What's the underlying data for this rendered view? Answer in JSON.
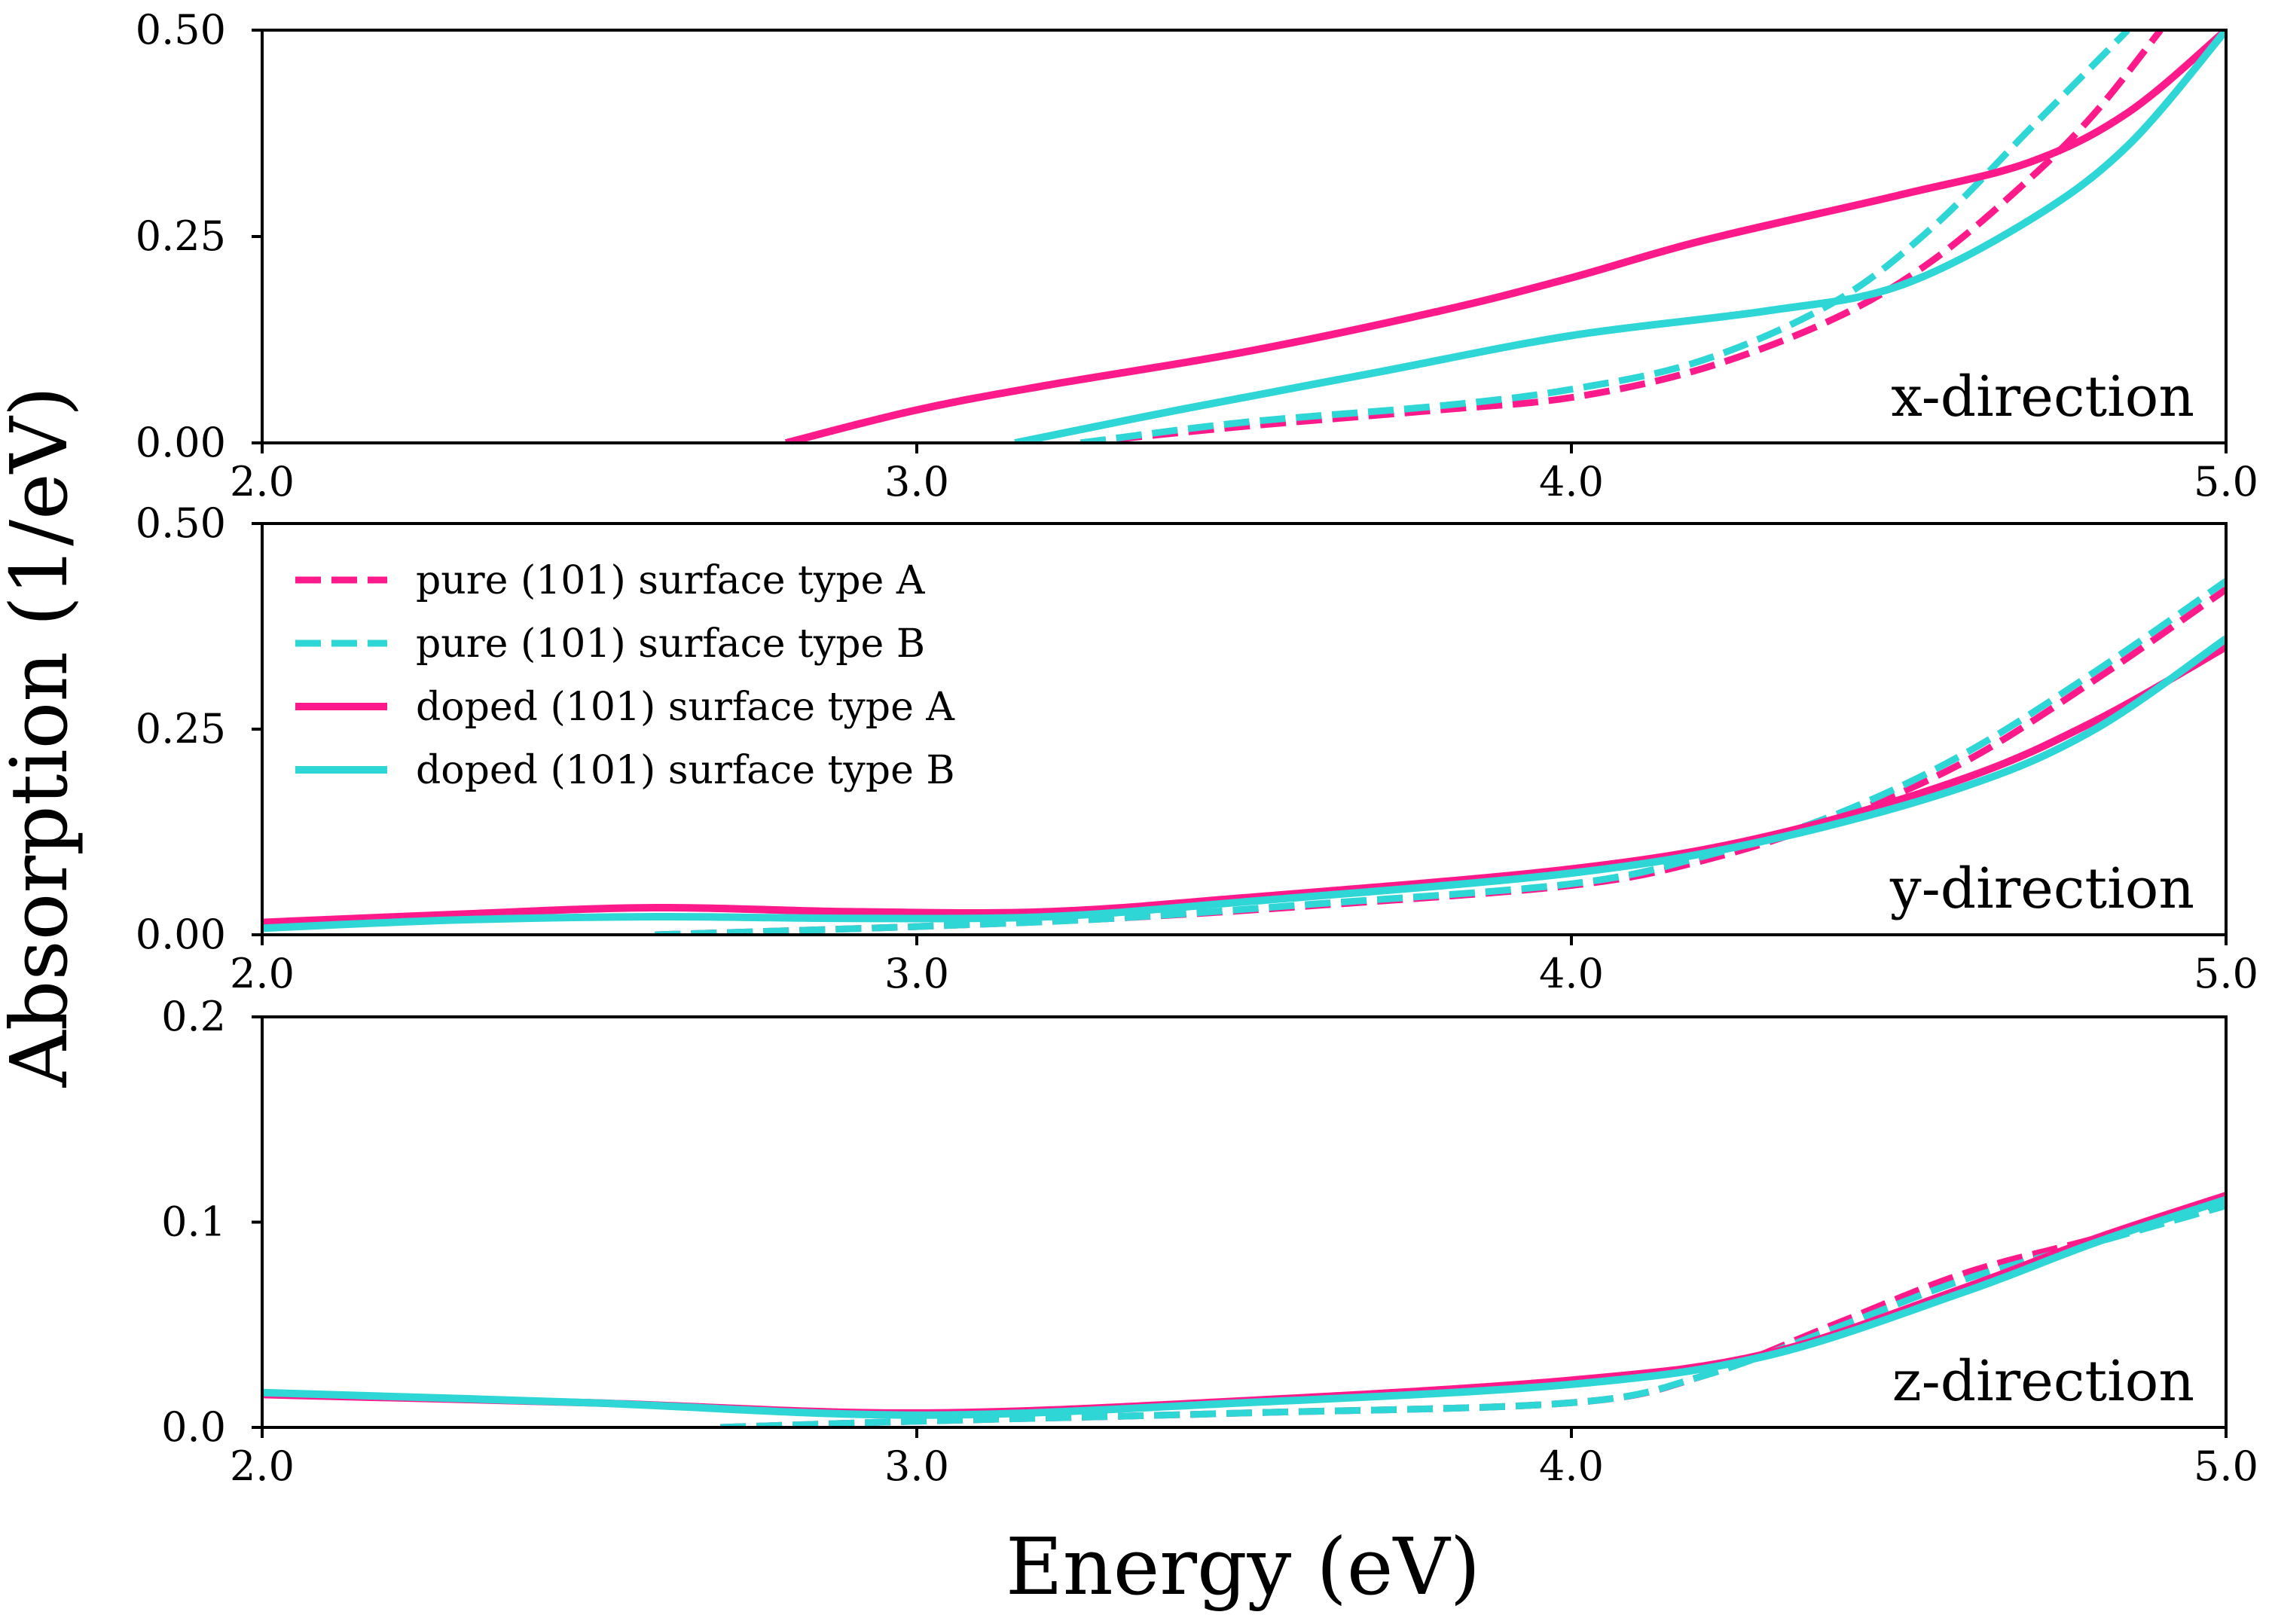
{
  "figure": {
    "xlabel": "Energy (eV)",
    "ylabel": "Absorption (1/eV)"
  },
  "series_styles": [
    {
      "name": "pure (101) surface type A",
      "color": "#ff1a8c",
      "dash": true
    },
    {
      "name": "pure (101) surface type B",
      "color": "#2ed6d6",
      "dash": true
    },
    {
      "name": "doped (101) surface type A",
      "color": "#ff1a8c",
      "dash": false
    },
    {
      "name": "doped (101) surface type B",
      "color": "#2ed6d6",
      "dash": false
    }
  ],
  "chart_data": [
    {
      "type": "line",
      "annotation": "x-direction",
      "xlim": [
        2.0,
        5.0
      ],
      "ylim": [
        0.0,
        0.5
      ],
      "xticks": [
        "2.0",
        "3.0",
        "4.0",
        "5.0"
      ],
      "yticks": [
        "0.00",
        "0.25",
        "0.50"
      ],
      "ytick_values": [
        0.0,
        0.25,
        0.5
      ],
      "series": [
        {
          "name": "pure (101) surface type A",
          "x": [
            3.25,
            3.5,
            3.8,
            4.0,
            4.2,
            4.4,
            4.55,
            4.7,
            4.8,
            4.9
          ],
          "y": [
            0.0,
            0.02,
            0.04,
            0.055,
            0.09,
            0.15,
            0.22,
            0.32,
            0.4,
            0.5
          ]
        },
        {
          "name": "pure (101) surface type B",
          "x": [
            3.25,
            3.5,
            3.8,
            4.0,
            4.2,
            4.4,
            4.55,
            4.7,
            4.8,
            4.85
          ],
          "y": [
            0.0,
            0.025,
            0.045,
            0.065,
            0.1,
            0.17,
            0.26,
            0.38,
            0.46,
            0.5
          ]
        },
        {
          "name": "doped (101) surface type A",
          "x": [
            2.8,
            3.0,
            3.2,
            3.5,
            3.8,
            4.0,
            4.2,
            4.5,
            4.7,
            4.85,
            5.0
          ],
          "y": [
            0.0,
            0.04,
            0.07,
            0.11,
            0.16,
            0.2,
            0.245,
            0.3,
            0.34,
            0.4,
            0.5
          ]
        },
        {
          "name": "doped (101) surface type B",
          "x": [
            3.15,
            3.4,
            3.7,
            4.0,
            4.3,
            4.5,
            4.7,
            4.85,
            5.0
          ],
          "y": [
            0.0,
            0.04,
            0.085,
            0.13,
            0.16,
            0.19,
            0.27,
            0.36,
            0.5
          ]
        }
      ]
    },
    {
      "type": "line",
      "annotation": "y-direction",
      "xlim": [
        2.0,
        5.0
      ],
      "ylim": [
        0.0,
        0.5
      ],
      "xticks": [
        "2.0",
        "3.0",
        "4.0",
        "5.0"
      ],
      "yticks": [
        "0.00",
        "0.25",
        "0.50"
      ],
      "ytick_values": [
        0.0,
        0.25,
        0.5
      ],
      "series": [
        {
          "name": "pure (101) surface type A",
          "x": [
            2.6,
            3.0,
            3.3,
            3.6,
            4.0,
            4.2,
            4.4,
            4.6,
            4.8,
            5.0
          ],
          "y": [
            0.0,
            0.01,
            0.02,
            0.035,
            0.06,
            0.09,
            0.14,
            0.21,
            0.31,
            0.42
          ]
        },
        {
          "name": "pure (101) surface type B",
          "x": [
            2.6,
            3.0,
            3.3,
            3.6,
            4.0,
            4.2,
            4.4,
            4.6,
            4.8,
            5.0
          ],
          "y": [
            0.0,
            0.01,
            0.02,
            0.037,
            0.062,
            0.095,
            0.145,
            0.22,
            0.32,
            0.43
          ]
        },
        {
          "name": "doped (101) surface type A",
          "x": [
            2.0,
            2.3,
            2.6,
            2.9,
            3.2,
            3.5,
            4.0,
            4.3,
            4.6,
            4.8,
            5.0
          ],
          "y": [
            0.015,
            0.025,
            0.033,
            0.028,
            0.028,
            0.045,
            0.08,
            0.12,
            0.19,
            0.26,
            0.35
          ]
        },
        {
          "name": "doped (101) surface type B",
          "x": [
            2.0,
            2.3,
            2.6,
            2.9,
            3.2,
            3.5,
            4.0,
            4.3,
            4.6,
            4.8,
            5.0
          ],
          "y": [
            0.008,
            0.018,
            0.022,
            0.02,
            0.022,
            0.04,
            0.075,
            0.115,
            0.18,
            0.25,
            0.36
          ]
        }
      ]
    },
    {
      "type": "line",
      "annotation": "z-direction",
      "xlim": [
        2.0,
        5.0
      ],
      "ylim": [
        0.0,
        0.2
      ],
      "xticks": [
        "2.0",
        "3.0",
        "4.0",
        "5.0"
      ],
      "yticks": [
        "0.0",
        "0.1",
        "0.2"
      ],
      "ytick_values": [
        0.0,
        0.1,
        0.2
      ],
      "series": [
        {
          "name": "pure (101) surface type A",
          "x": [
            2.7,
            3.0,
            3.5,
            4.0,
            4.2,
            4.4,
            4.6,
            4.8,
            5.0
          ],
          "y": [
            0.0,
            0.003,
            0.007,
            0.012,
            0.025,
            0.05,
            0.075,
            0.092,
            0.11
          ]
        },
        {
          "name": "pure (101) surface type B",
          "x": [
            2.7,
            3.0,
            3.5,
            4.0,
            4.2,
            4.4,
            4.6,
            4.8,
            5.0
          ],
          "y": [
            0.0,
            0.003,
            0.007,
            0.012,
            0.025,
            0.048,
            0.072,
            0.09,
            0.108
          ]
        },
        {
          "name": "doped (101) surface type A",
          "x": [
            2.0,
            2.5,
            3.0,
            3.5,
            4.0,
            4.3,
            4.6,
            4.8,
            5.0
          ],
          "y": [
            0.016,
            0.012,
            0.007,
            0.013,
            0.023,
            0.036,
            0.068,
            0.092,
            0.113
          ]
        },
        {
          "name": "doped (101) surface type B",
          "x": [
            2.0,
            2.5,
            3.0,
            3.5,
            4.0,
            4.3,
            4.6,
            4.8,
            5.0
          ],
          "y": [
            0.017,
            0.012,
            0.006,
            0.012,
            0.021,
            0.035,
            0.066,
            0.09,
            0.111
          ]
        }
      ]
    }
  ]
}
